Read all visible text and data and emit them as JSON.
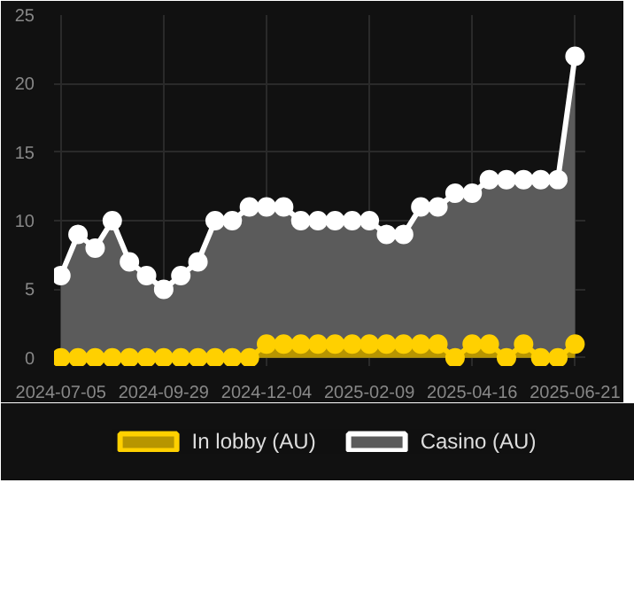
{
  "chart_data": {
    "type": "area",
    "categories": [
      "2024-07-05",
      null,
      null,
      null,
      null,
      null,
      "2024-09-29",
      null,
      null,
      null,
      null,
      null,
      "2024-12-04",
      null,
      null,
      null,
      null,
      null,
      "2025-02-09",
      null,
      null,
      null,
      null,
      null,
      "2025-04-16",
      null,
      null,
      null,
      null,
      null,
      "2025-06-21"
    ],
    "series": [
      {
        "name": "In lobby (AU)",
        "color": "#ffd000",
        "values": [
          0,
          0,
          0,
          0,
          0,
          0,
          0,
          0,
          0,
          0,
          0,
          0,
          1,
          1,
          1,
          1,
          1,
          1,
          1,
          1,
          1,
          1,
          1,
          0,
          1,
          1,
          0,
          1,
          0,
          0,
          1
        ]
      },
      {
        "name": "Casino (AU)",
        "color": "#ffffff",
        "values": [
          6,
          9,
          8,
          10,
          7,
          6,
          5,
          6,
          7,
          10,
          10,
          11,
          11,
          11,
          10,
          10,
          10,
          10,
          10,
          9,
          9,
          11,
          11,
          12,
          12,
          13,
          13,
          13,
          13,
          13,
          22
        ]
      }
    ],
    "ylim": [
      -0.6,
      25
    ],
    "yticks": [
      0,
      5,
      10,
      15,
      20,
      25
    ],
    "grid": true,
    "legend": "bottom",
    "marker": "circle"
  }
}
